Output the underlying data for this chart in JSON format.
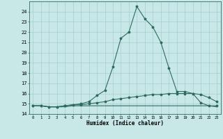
{
  "x": [
    0,
    1,
    2,
    3,
    4,
    5,
    6,
    7,
    8,
    9,
    10,
    11,
    12,
    13,
    14,
    15,
    16,
    17,
    18,
    19,
    20,
    21,
    22,
    23
  ],
  "line1": [
    14.8,
    14.8,
    14.7,
    14.7,
    14.7,
    14.8,
    14.8,
    14.8,
    14.8,
    14.8,
    14.8,
    14.8,
    14.8,
    14.8,
    14.8,
    14.8,
    14.8,
    14.8,
    14.8,
    14.8,
    14.8,
    14.8,
    14.8,
    14.7
  ],
  "line2": [
    14.8,
    14.8,
    14.7,
    14.7,
    14.8,
    14.9,
    14.9,
    15.0,
    15.1,
    15.2,
    15.4,
    15.5,
    15.6,
    15.7,
    15.8,
    15.9,
    15.9,
    16.0,
    16.0,
    16.0,
    16.0,
    15.9,
    15.6,
    15.2
  ],
  "line3": [
    14.8,
    14.8,
    14.7,
    14.7,
    14.8,
    14.9,
    15.0,
    15.2,
    15.8,
    16.3,
    18.6,
    21.4,
    22.0,
    24.5,
    23.3,
    22.5,
    21.0,
    18.5,
    16.2,
    16.2,
    16.0,
    15.1,
    14.8,
    14.8
  ],
  "line_color": "#2e6b5e",
  "bg_color": "#c8e8e8",
  "grid_color": "#a8cccc",
  "xlabel": "Humidex (Indice chaleur)",
  "xlim": [
    -0.5,
    23.5
  ],
  "ylim": [
    14,
    25
  ],
  "yticks": [
    14,
    15,
    16,
    17,
    18,
    19,
    20,
    21,
    22,
    23,
    24
  ],
  "xticks": [
    0,
    1,
    2,
    3,
    4,
    5,
    6,
    7,
    8,
    9,
    10,
    11,
    12,
    13,
    14,
    15,
    16,
    17,
    18,
    19,
    20,
    21,
    22,
    23
  ]
}
